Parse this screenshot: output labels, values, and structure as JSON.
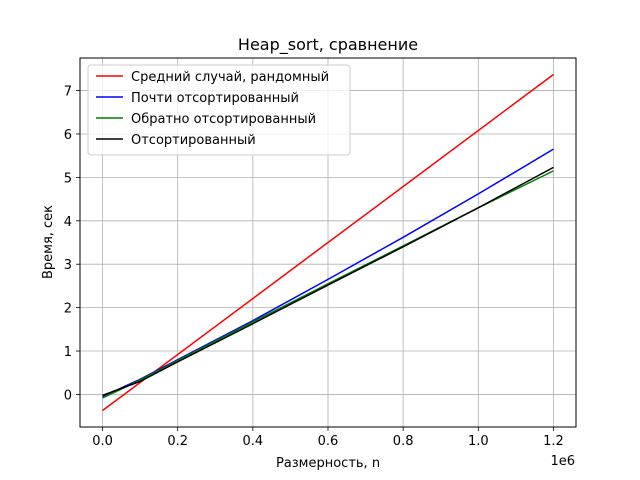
{
  "chart_data": {
    "type": "line",
    "title": "Heap_sort, сравнение",
    "xlabel": "Размерность, n",
    "ylabel": "Время, сек",
    "x_offset_label": "1e6",
    "xlim": [
      -60000,
      1260000
    ],
    "ylim": [
      -0.75,
      7.75
    ],
    "x_ticks": [
      0,
      200000,
      400000,
      600000,
      800000,
      1000000,
      1200000
    ],
    "x_tick_labels": [
      "0.0",
      "0.2",
      "0.4",
      "0.6",
      "0.8",
      "1.0",
      "1.2"
    ],
    "y_ticks": [
      0,
      1,
      2,
      3,
      4,
      5,
      6,
      7
    ],
    "y_tick_labels": [
      "0",
      "1",
      "2",
      "3",
      "4",
      "5",
      "6",
      "7"
    ],
    "grid": true,
    "legend_position": "top-left",
    "series": [
      {
        "name": "Средний случай, рандомный",
        "color": "#ff0000",
        "x": [
          0,
          1200000
        ],
        "y": [
          -0.37,
          7.37
        ]
      },
      {
        "name": "Почти отсортированный",
        "color": "#0000ff",
        "x": [
          0,
          100000,
          200000,
          400000,
          600000,
          800000,
          1000000,
          1200000
        ],
        "y": [
          -0.05,
          0.35,
          0.8,
          1.7,
          2.65,
          3.62,
          4.62,
          5.65
        ]
      },
      {
        "name": "Обратно отсортированный",
        "color": "#008000",
        "x": [
          0,
          100000,
          200000,
          400000,
          600000,
          800000,
          1000000,
          1200000
        ],
        "y": [
          -0.08,
          0.33,
          0.78,
          1.67,
          2.55,
          3.42,
          4.3,
          5.15
        ]
      },
      {
        "name": "Отсортированный",
        "color": "#000000",
        "x": [
          0,
          100000,
          200000,
          400000,
          600000,
          800000,
          1000000,
          1200000
        ],
        "y": [
          -0.02,
          0.3,
          0.75,
          1.63,
          2.52,
          3.4,
          4.3,
          5.23
        ]
      }
    ]
  }
}
